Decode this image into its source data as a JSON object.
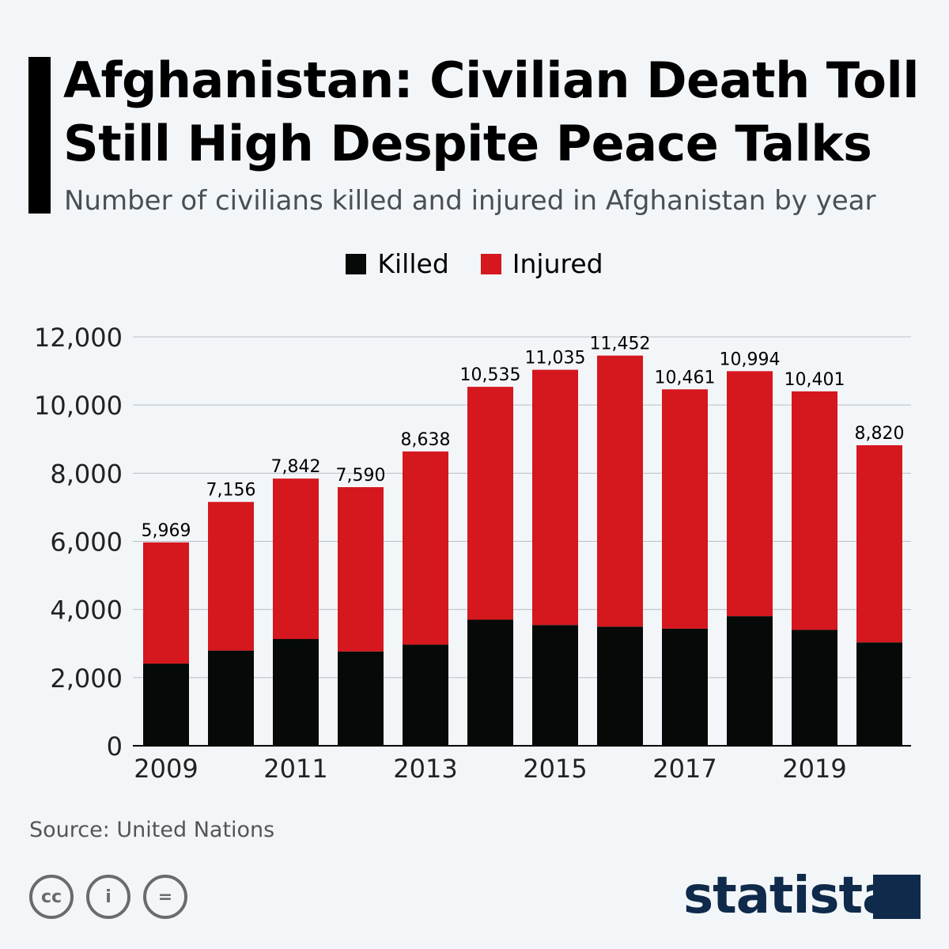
{
  "title_lines": [
    "Afghanistan: Civilian Death Toll",
    "Still High Despite Peace Talks"
  ],
  "subtitle": "Number of civilians killed and injured in Afghanistan by year",
  "legend": [
    {
      "label": "Killed",
      "color": "#050a08"
    },
    {
      "label": "Injured",
      "color": "#d5171e"
    }
  ],
  "source": "Source: United Nations",
  "license_icons": [
    "cc-icon",
    "attribution-icon",
    "no-derivatives-icon"
  ],
  "brand": "statista",
  "chart_data": {
    "type": "bar",
    "stacked": true,
    "categories": [
      "2009",
      "2010",
      "2011",
      "2012",
      "2013",
      "2014",
      "2015",
      "2016",
      "2017",
      "2018",
      "2019",
      "2020"
    ],
    "x_tick_labels": [
      "2009",
      "",
      "2011",
      "",
      "2013",
      "",
      "2015",
      "",
      "2017",
      "",
      "2019",
      ""
    ],
    "series": [
      {
        "name": "Killed",
        "color": "#050a08",
        "values": [
          2412,
          2794,
          3133,
          2769,
          2969,
          3701,
          3545,
          3498,
          3438,
          3804,
          3403,
          3035
        ]
      },
      {
        "name": "Injured",
        "color": "#d5171e",
        "values": [
          3557,
          4362,
          4709,
          4821,
          5669,
          6834,
          7490,
          7954,
          7023,
          7190,
          6998,
          5785
        ]
      }
    ],
    "totals": [
      "5,969",
      "7,156",
      "7,842",
      "7,590",
      "8,638",
      "10,535",
      "11,035",
      "11,452",
      "10,461",
      "10,994",
      "10,401",
      "8,820"
    ],
    "ylim": [
      0,
      12000
    ],
    "y_ticks": [
      "0",
      "2,000",
      "4,000",
      "6,000",
      "8,000",
      "10,000",
      "12,000"
    ],
    "grid": true,
    "legend_position": "top"
  }
}
